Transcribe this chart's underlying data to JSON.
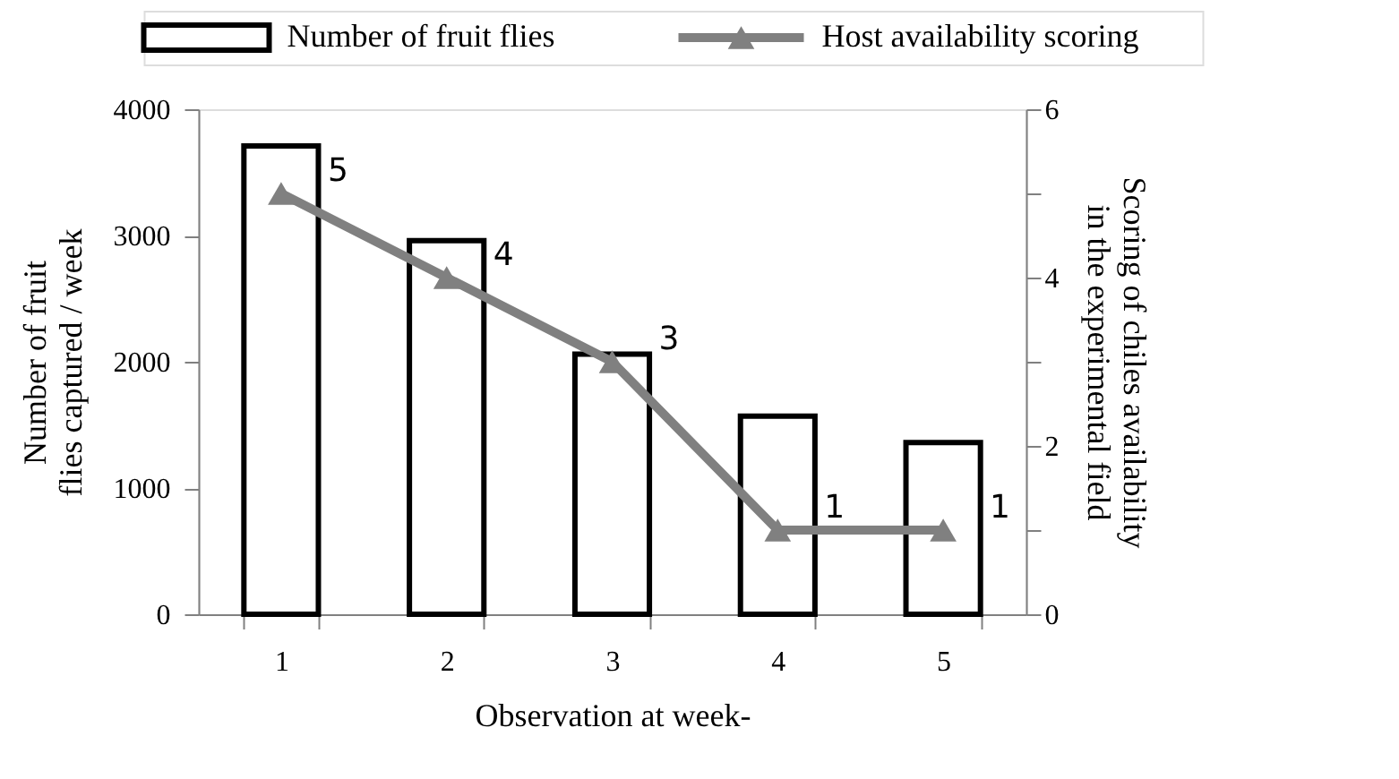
{
  "chart_data": {
    "type": "bar",
    "xlabel": "Observation at week-",
    "ylabel": "Number of fruit flies captured / week",
    "y2label": "Scoring of chiles availability in the experimental field",
    "categories": [
      "1",
      "2",
      "3",
      "4",
      "5"
    ],
    "series": [
      {
        "name": "Number of fruit flies",
        "color": "#ffffff",
        "values": [
          3710,
          2960,
          2060,
          1570,
          1360
        ]
      },
      {
        "name": "Host availability scoring",
        "type": "line",
        "axis": "y2",
        "color": "#808080",
        "marker": "triangle",
        "values": [
          5,
          4,
          3,
          1,
          1
        ],
        "value_labels": [
          "5",
          "4",
          "3",
          "1",
          "1"
        ]
      }
    ],
    "ylim": [
      0,
      4000
    ],
    "yticks": [
      0,
      1000,
      2000,
      3000,
      4000
    ],
    "y2lim": [
      0,
      6
    ],
    "y2ticks": [
      0,
      {
        "value": 1,
        "label": null
      },
      2,
      {
        "value": 3,
        "label": null
      },
      4,
      {
        "value": 5,
        "label": null
      },
      6
    ],
    "grid": false,
    "legend": "top"
  }
}
